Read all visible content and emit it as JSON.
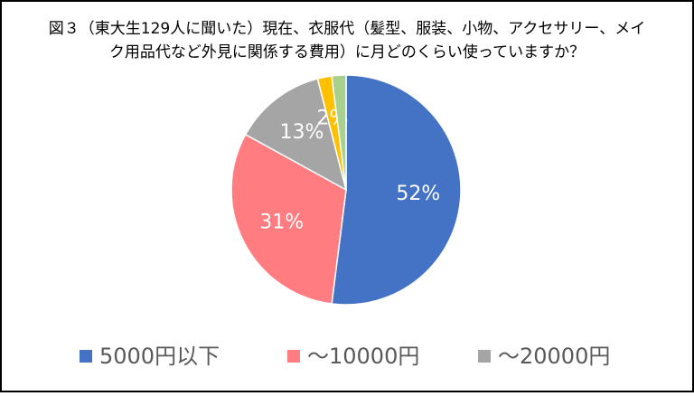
{
  "chart_data": {
    "type": "pie",
    "title": [
      "図３（東大生129人に聞いた）現在、衣服代（髪型、服装、小物、アクセサリー、メイ",
      "ク用品代など外見に関係する費用）に月どのくらい使っていますか？"
    ],
    "categories": [
      "5000円以下",
      "～10000円",
      "～20000円",
      null,
      null
    ],
    "values": [
      52,
      31,
      13,
      2,
      2
    ],
    "value_labels": [
      "52%",
      "31%",
      "13%",
      "2%",
      null
    ],
    "colors": [
      "#4472c4",
      "#ff7c80",
      "#a5a5a5",
      "#ffc000",
      "#a9d18e"
    ],
    "legend": "bottom"
  }
}
